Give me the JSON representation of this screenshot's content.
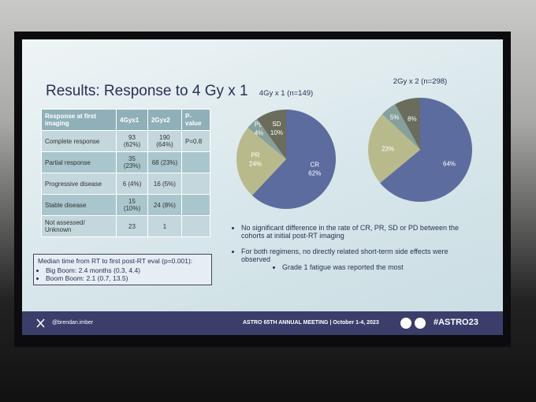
{
  "slide": {
    "title": "Results: Response to 4 Gy x 1",
    "table": {
      "header": [
        "Response at first imaging",
        "4Gyx1",
        "2Gyx2",
        "P-value"
      ],
      "rows": [
        [
          "Complete response",
          "93 (62%)",
          "190 (64%)",
          "P=0.8"
        ],
        [
          "Partial response",
          "35 (23%)",
          "68 (23%)"
        ],
        [
          "Progressive disease",
          "6 (4%)",
          "16 (5%)"
        ],
        [
          "Stable disease",
          "15 (10%)",
          "24 (8%)"
        ],
        [
          "Not assessed/ Unknown",
          "23",
          "1"
        ]
      ]
    },
    "box": {
      "heading": "Median time from RT to first post-RT eval (p=0.001):",
      "items": [
        "Big Boom: 2.4 months (0.3, 4.4)",
        "Boom Boom: 2.1 (0.7, 13.5)"
      ]
    },
    "bullets": [
      "No significant difference in the rate of CR, PR, SD or PD between the cohorts at initial post-RT imaging",
      "For both regimens, no directly related short-term side effects were observed"
    ],
    "sub_bullet": "Grade 1 fatigue was reported the most",
    "footer": {
      "handle": "@brendan.imber",
      "meeting": "ASTRO 65TH ANNUAL MEETING | October 1-4, 2023",
      "hashtag": "#ASTRO23"
    }
  },
  "chart_data": [
    {
      "type": "pie",
      "title": "4Gy x 1 (n=149)",
      "categories": [
        "CR",
        "PR",
        "PD",
        "SD"
      ],
      "values": [
        62,
        24,
        4,
        10
      ],
      "value_labels": [
        "62%",
        "24%",
        "4%",
        "10%"
      ],
      "colors": [
        "#5d6c9e",
        "#b9ba8c",
        "#86a09c",
        "#6a6c5c"
      ]
    },
    {
      "type": "pie",
      "title": "2Gy x 2 (n=298)",
      "values": [
        64,
        23,
        5,
        8
      ],
      "value_labels": [
        "64%",
        "23%",
        "5%",
        "8%"
      ],
      "colors": [
        "#5d6c9e",
        "#b9ba8c",
        "#86a09c",
        "#6a6c5c"
      ]
    }
  ]
}
